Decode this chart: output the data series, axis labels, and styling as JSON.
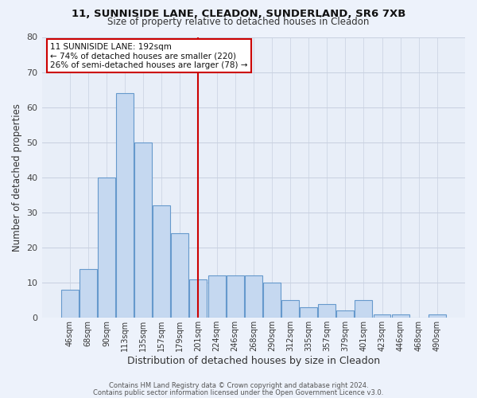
{
  "title1": "11, SUNNISIDE LANE, CLEADON, SUNDERLAND, SR6 7XB",
  "title2": "Size of property relative to detached houses in Cleadon",
  "xlabel": "Distribution of detached houses by size in Cleadon",
  "ylabel": "Number of detached properties",
  "bar_labels": [
    "46sqm",
    "68sqm",
    "90sqm",
    "113sqm",
    "135sqm",
    "157sqm",
    "179sqm",
    "201sqm",
    "224sqm",
    "246sqm",
    "268sqm",
    "290sqm",
    "312sqm",
    "335sqm",
    "357sqm",
    "379sqm",
    "401sqm",
    "423sqm",
    "446sqm",
    "468sqm",
    "490sqm"
  ],
  "bar_heights": [
    8,
    14,
    40,
    64,
    50,
    32,
    24,
    11,
    12,
    12,
    12,
    10,
    5,
    3,
    4,
    2,
    5,
    1,
    1,
    0,
    1
  ],
  "bar_color": "#c5d8f0",
  "bar_edge_color": "#6699cc",
  "vline_pos": 7.5,
  "vline_color": "#cc0000",
  "annotation_line1": "11 SUNNISIDE LANE: 192sqm",
  "annotation_line2": "← 74% of detached houses are smaller (220)",
  "annotation_line3": "26% of semi-detached houses are larger (78) →",
  "ylim": [
    0,
    80
  ],
  "yticks": [
    0,
    10,
    20,
    30,
    40,
    50,
    60,
    70,
    80
  ],
  "footer1": "Contains HM Land Registry data © Crown copyright and database right 2024.",
  "footer2": "Contains public sector information licensed under the Open Government Licence v3.0.",
  "bg_color": "#edf2fb",
  "plot_bg_color": "#e8eef8",
  "grid_color": "#c8d0e0"
}
